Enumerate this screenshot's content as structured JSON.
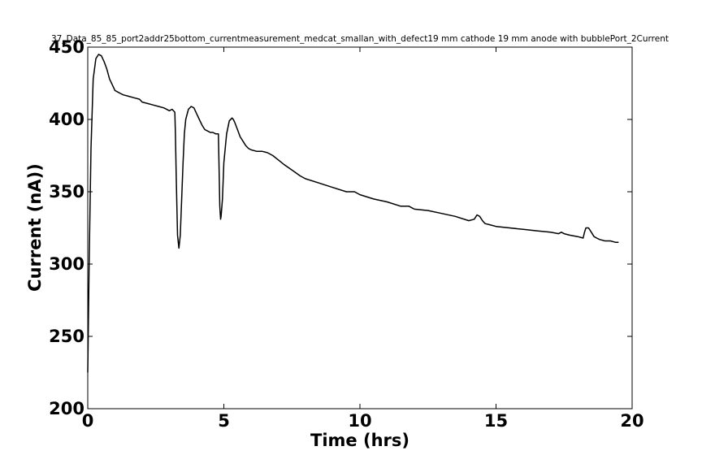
{
  "chart_data": {
    "type": "line",
    "title": "37_Data_85_85_port2addr25bottom_currentmeasurement_medcat_smallan_with_defect19 mm cathode 19 mm anode with bubblePort_2Current",
    "xlabel": "Time (hrs)",
    "ylabel": "Current (nA))",
    "xlim": [
      0,
      20
    ],
    "ylim": [
      200,
      450
    ],
    "xticks": [
      0,
      5,
      10,
      15,
      20
    ],
    "yticks": [
      200,
      250,
      300,
      350,
      400,
      450
    ],
    "grid": false,
    "line_color": "#000000",
    "series": [
      {
        "x": [
          0.0,
          0.05,
          0.12,
          0.2,
          0.3,
          0.4,
          0.5,
          0.55,
          0.6,
          0.7,
          0.8,
          0.9,
          1.0,
          1.1,
          1.2,
          1.3,
          1.5,
          1.7,
          1.9,
          2.0,
          2.2,
          2.4,
          2.6,
          2.8,
          3.0,
          3.1,
          3.2,
          3.22,
          3.25,
          3.3,
          3.35,
          3.4,
          3.45,
          3.5,
          3.55,
          3.6,
          3.7,
          3.8,
          3.9,
          4.0,
          4.1,
          4.2,
          4.3,
          4.4,
          4.5,
          4.6,
          4.7,
          4.8,
          4.82,
          4.85,
          4.88,
          4.9,
          4.95,
          5.0,
          5.1,
          5.2,
          5.3,
          5.35,
          5.4,
          5.5,
          5.6,
          5.7,
          5.8,
          5.9,
          6.0,
          6.2,
          6.4,
          6.6,
          6.8,
          7.0,
          7.2,
          7.5,
          7.8,
          8.0,
          8.5,
          9.0,
          9.5,
          9.8,
          10.0,
          10.5,
          11.0,
          11.5,
          11.8,
          12.0,
          12.5,
          13.0,
          13.5,
          14.0,
          14.2,
          14.3,
          14.4,
          14.5,
          14.6,
          14.8,
          15.0,
          15.5,
          16.0,
          16.5,
          17.0,
          17.3,
          17.4,
          17.5,
          17.7,
          18.0,
          18.2,
          18.25,
          18.3,
          18.4,
          18.5,
          18.6,
          18.7,
          18.8,
          19.0,
          19.2,
          19.4,
          19.5
        ],
        "y": [
          225,
          300,
          380,
          428,
          442,
          445,
          444,
          442,
          440,
          435,
          428,
          424,
          420,
          419,
          418,
          417,
          416,
          415,
          414,
          412,
          411,
          410,
          409,
          408,
          406,
          407,
          405,
          390,
          360,
          320,
          311,
          320,
          345,
          370,
          390,
          400,
          407,
          409,
          408,
          404,
          400,
          396,
          393,
          392,
          391,
          391,
          390,
          390,
          370,
          340,
          331,
          333,
          345,
          370,
          390,
          399,
          401,
          400,
          398,
          393,
          388,
          385,
          382,
          380,
          379,
          378,
          378,
          377,
          375,
          372,
          369,
          365,
          361,
          359,
          356,
          353,
          350,
          350,
          348,
          345,
          343,
          340,
          340,
          338,
          337,
          335,
          333,
          330,
          331,
          334,
          333,
          330,
          328,
          327,
          326,
          325,
          324,
          323,
          322,
          321,
          322,
          321,
          320,
          319,
          318,
          322,
          325,
          325,
          322,
          319,
          318,
          317,
          316,
          316,
          315,
          315
        ]
      }
    ]
  }
}
